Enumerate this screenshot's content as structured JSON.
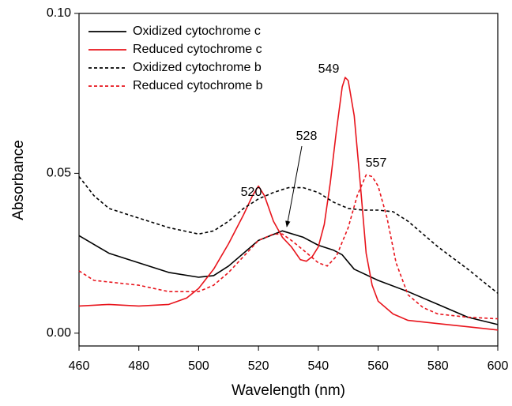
{
  "chart_data": {
    "type": "line",
    "xlabel": "Wavelength (nm)",
    "ylabel": "Absorbance",
    "xlim": [
      460,
      600
    ],
    "xticks": [
      460,
      480,
      500,
      520,
      540,
      560,
      580,
      600
    ],
    "ylim": [
      -0.004,
      0.1
    ],
    "yticks": [
      {
        "value": 0,
        "label": "0.00"
      },
      {
        "value": 0.05,
        "label": "0.05"
      },
      {
        "value": 0.1,
        "label": "0.10"
      }
    ],
    "legend": "upper left",
    "series": [
      {
        "name": "Oxidized cytochrome c",
        "color": "#000000",
        "dash": "solid",
        "x": [
          460,
          470,
          480,
          490,
          500,
          505,
          510,
          520,
          528,
          535,
          540,
          545,
          548,
          552,
          560,
          570,
          580,
          590,
          600
        ],
        "values": [
          0.0305,
          0.025,
          0.022,
          0.019,
          0.0175,
          0.018,
          0.021,
          0.029,
          0.032,
          0.03,
          0.0275,
          0.026,
          0.0245,
          0.02,
          0.0165,
          0.013,
          0.009,
          0.005,
          0.0027
        ]
      },
      {
        "name": "Reduced cytochrome c",
        "color": "#e8141c",
        "dash": "solid",
        "x": [
          460,
          470,
          480,
          490,
          496,
          500,
          505,
          510,
          515,
          518,
          520,
          522,
          525,
          528,
          531,
          534,
          536,
          538,
          540,
          542,
          544,
          546,
          548,
          549,
          550,
          552,
          554,
          556,
          558,
          560,
          565,
          570,
          580,
          590,
          600
        ],
        "values": [
          0.0085,
          0.009,
          0.0085,
          0.009,
          0.011,
          0.014,
          0.02,
          0.028,
          0.037,
          0.043,
          0.046,
          0.043,
          0.035,
          0.03,
          0.027,
          0.023,
          0.0225,
          0.024,
          0.027,
          0.034,
          0.047,
          0.063,
          0.077,
          0.08,
          0.079,
          0.068,
          0.047,
          0.025,
          0.015,
          0.01,
          0.006,
          0.004,
          0.003,
          0.002,
          0.001
        ]
      },
      {
        "name": "Oxidized cytochrome b",
        "color": "#000000",
        "dash": "dashed",
        "x": [
          460,
          465,
          470,
          480,
          490,
          500,
          505,
          510,
          515,
          520,
          525,
          530,
          535,
          540,
          545,
          550,
          555,
          560,
          565,
          570,
          575,
          580,
          590,
          600
        ],
        "values": [
          0.049,
          0.043,
          0.039,
          0.036,
          0.033,
          0.031,
          0.032,
          0.035,
          0.039,
          0.042,
          0.044,
          0.0455,
          0.0455,
          0.044,
          0.041,
          0.039,
          0.0385,
          0.0385,
          0.038,
          0.035,
          0.031,
          0.027,
          0.02,
          0.0125
        ]
      },
      {
        "name": "Reduced cytochrome b",
        "color": "#e8141c",
        "dash": "dashed",
        "x": [
          460,
          465,
          470,
          480,
          490,
          500,
          505,
          510,
          515,
          520,
          525,
          528,
          531,
          535,
          540,
          543,
          546,
          550,
          553,
          556,
          558,
          560,
          563,
          566,
          570,
          575,
          580,
          590,
          600
        ],
        "values": [
          0.0195,
          0.0165,
          0.016,
          0.015,
          0.013,
          0.013,
          0.015,
          0.019,
          0.024,
          0.029,
          0.031,
          0.031,
          0.029,
          0.026,
          0.022,
          0.021,
          0.024,
          0.033,
          0.043,
          0.0495,
          0.049,
          0.046,
          0.036,
          0.022,
          0.012,
          0.008,
          0.006,
          0.005,
          0.0045
        ]
      }
    ],
    "annotations": [
      "520",
      "528",
      "549",
      "557"
    ]
  }
}
